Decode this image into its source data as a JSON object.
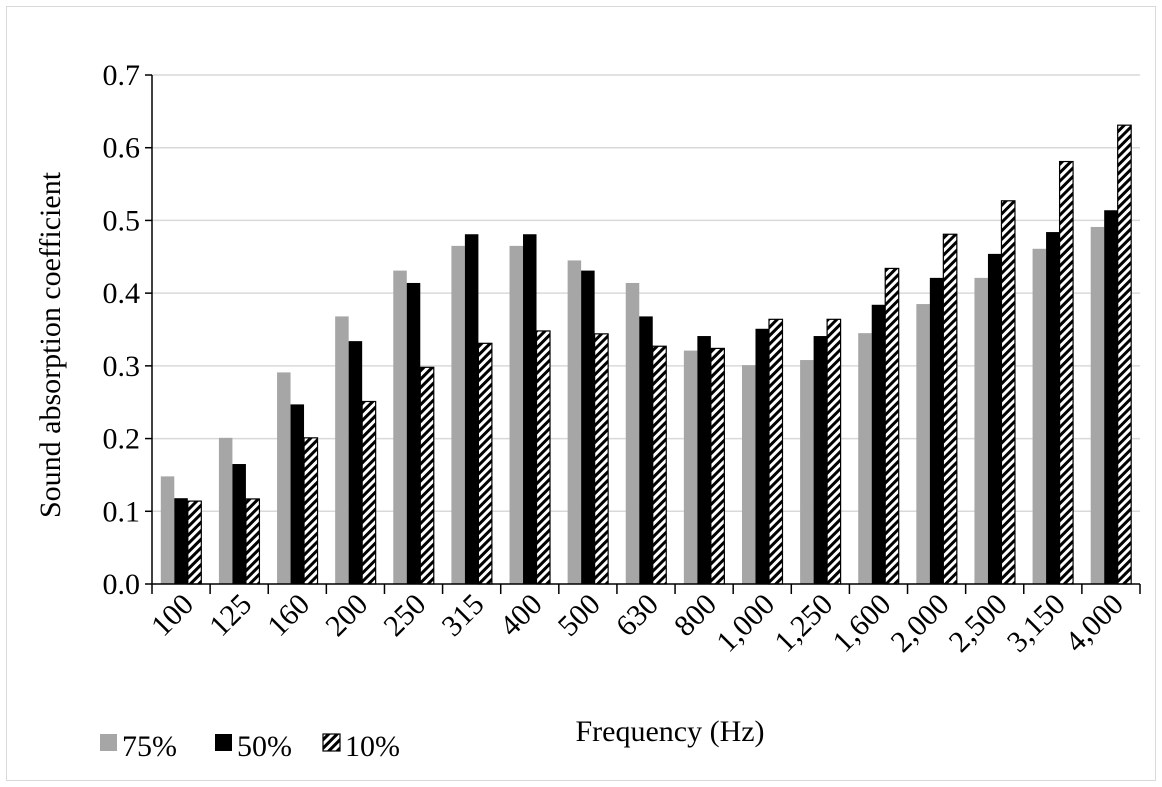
{
  "chart_data": {
    "type": "bar",
    "xlabel": "Frequency  (Hz)",
    "ylabel": "Sound  absorption  coefficient",
    "ylim": [
      0,
      0.7
    ],
    "yticks": [
      "0.0",
      "0.1",
      "0.2",
      "0.3",
      "0.4",
      "0.5",
      "0.6",
      "0.7"
    ],
    "grid": true,
    "legend_position": "bottom-left",
    "categories": [
      "100",
      "125",
      "160",
      "200",
      "250",
      "315",
      "400",
      "500",
      "630",
      "800",
      "1,000",
      "1,250",
      "1,600",
      "2,000",
      "2,500",
      "3,150",
      "4,000"
    ],
    "series": [
      {
        "name": "75%",
        "color": "#a6a6a6",
        "pattern": "solid",
        "values": [
          0.148,
          0.201,
          0.291,
          0.368,
          0.431,
          0.465,
          0.465,
          0.445,
          0.414,
          0.321,
          0.301,
          0.308,
          0.345,
          0.385,
          0.421,
          0.461,
          0.491
        ]
      },
      {
        "name": "50%",
        "color": "#000000",
        "pattern": "solid",
        "values": [
          0.118,
          0.165,
          0.247,
          0.334,
          0.414,
          0.481,
          0.481,
          0.431,
          0.368,
          0.341,
          0.351,
          0.341,
          0.384,
          0.421,
          0.454,
          0.484,
          0.514
        ]
      },
      {
        "name": "10%",
        "color": "#000000",
        "pattern": "diagonal-hatch",
        "values": [
          0.114,
          0.117,
          0.201,
          0.251,
          0.298,
          0.331,
          0.348,
          0.344,
          0.327,
          0.324,
          0.364,
          0.364,
          0.434,
          0.481,
          0.527,
          0.581,
          0.631
        ]
      }
    ]
  }
}
